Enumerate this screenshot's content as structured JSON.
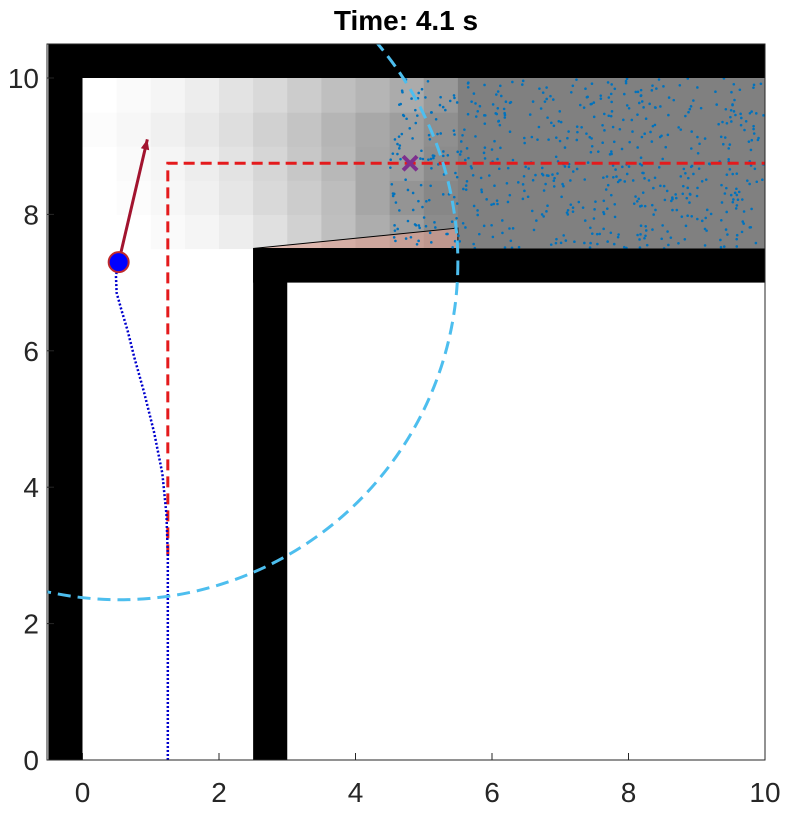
{
  "chart_data": {
    "type": "scatter",
    "title": "Time: 4.1 s",
    "xlabel": "",
    "ylabel": "",
    "xlim": [
      -0.5,
      10
    ],
    "ylim": [
      0,
      10.5
    ],
    "x_ticks": [
      0,
      2,
      4,
      6,
      8,
      10
    ],
    "y_ticks": [
      0,
      2,
      4,
      6,
      8,
      10
    ],
    "grid": false,
    "walls": [
      {
        "x": [
          -0.5,
          0
        ],
        "y": [
          0,
          10.5
        ]
      },
      {
        "x": [
          -0.5,
          10
        ],
        "y": [
          10,
          10.5
        ]
      },
      {
        "x": [
          2.5,
          3
        ],
        "y": [
          0,
          7.5
        ]
      },
      {
        "x": [
          2.5,
          10
        ],
        "y": [
          7,
          7.5
        ]
      }
    ],
    "occupancy_grid": {
      "x_start": 0,
      "y_start": 7.5,
      "cell_w": 0.5,
      "cell_h": 0.5,
      "rows": [
        [
          1.0,
          1.0,
          0.98,
          0.96,
          0.93,
          0.88,
          0.82,
          0.75,
          0.68,
          0.62,
          0.55
        ],
        [
          1.0,
          0.99,
          0.97,
          0.94,
          0.9,
          0.85,
          0.8,
          0.74,
          0.65,
          0.58,
          0.53
        ],
        [
          1.0,
          0.98,
          0.96,
          0.93,
          0.89,
          0.84,
          0.78,
          0.72,
          0.65,
          0.62,
          0.55
        ],
        [
          0.99,
          0.97,
          0.94,
          0.91,
          0.87,
          0.82,
          0.77,
          0.71,
          0.66,
          0.62,
          0.56
        ],
        [
          1.0,
          0.98,
          0.96,
          0.93,
          0.89,
          0.85,
          0.8,
          0.75,
          0.71,
          0.67,
          0.6
        ]
      ],
      "uniform_region": {
        "x": [
          5.5,
          10
        ],
        "y": [
          7.5,
          10
        ],
        "gray": 0.5
      }
    },
    "reference_path": {
      "x": [
        1.25,
        1.25,
        10
      ],
      "y": [
        3.0,
        8.75,
        8.75
      ],
      "color": "#e41a1c"
    },
    "target_marker": {
      "x": 4.8,
      "y": 8.75,
      "color": "#7e2f8e"
    },
    "robot": {
      "x": 0.53,
      "y": 7.3,
      "color": "#0000ff",
      "edge": "#c0292b"
    },
    "heading_arrow": {
      "x": [
        0.53,
        0.95
      ],
      "y": [
        7.3,
        9.1
      ],
      "color": "#a2142f"
    },
    "trajectory": {
      "x": [
        1.25,
        1.25,
        1.25,
        1.23,
        1.17,
        1.05,
        0.9,
        0.76,
        0.66,
        0.57,
        0.5,
        0.49,
        0.53
      ],
      "y": [
        0.0,
        1.5,
        3.0,
        3.6,
        4.2,
        4.8,
        5.4,
        5.9,
        6.3,
        6.6,
        6.85,
        7.1,
        7.3
      ],
      "color": "#0000cd"
    },
    "sensor_circle": {
      "cx": 0.55,
      "cy": 7.3,
      "r": 4.95,
      "color": "#4dbeee"
    },
    "view_cone": {
      "x": [
        2.5,
        5.5,
        5.5
      ],
      "y": [
        7.5,
        7.8,
        7.5
      ],
      "color": "#e8a090"
    },
    "particles": {
      "region_x": [
        4.5,
        10
      ],
      "region_y": [
        7.5,
        10
      ],
      "count": 620,
      "color": "#0072bd"
    }
  }
}
